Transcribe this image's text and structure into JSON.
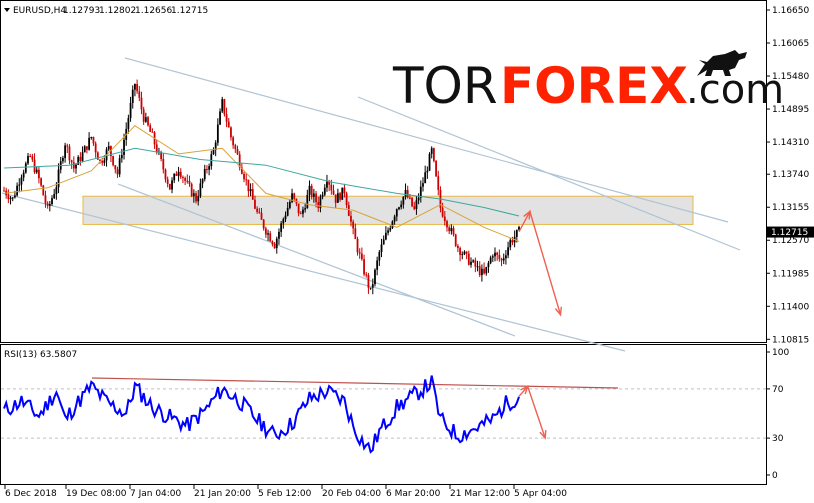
{
  "chart_header": {
    "symbol": "EURUSD,H4",
    "open": "1.12793",
    "high": "1.12802",
    "low": "1.12656",
    "close": "1.12715"
  },
  "logo": {
    "tor": "TOR",
    "forex": "FOREX",
    "com": ".com"
  },
  "current_price_label": "1.12715",
  "rsi_header": "RSI(13) 63.5807",
  "colors": {
    "bull_candle": "#000000",
    "bear_candle": "#cc0000",
    "ma_orange": "#d9a23a",
    "ma_teal": "#3ea7a0",
    "channel": "#b0c4d4",
    "resistance_zone_fill": "#d8d8d8",
    "resistance_zone_border": "#e8b84a",
    "rsi_line": "#0000ff",
    "arrow": "#f06050",
    "rsi_trendline": "#c0504d"
  },
  "chart_data": [
    {
      "type": "candlestick",
      "title": "",
      "y_ticks": [
        "1.16650",
        "1.16065",
        "1.15480",
        "1.14895",
        "1.14310",
        "1.13740",
        "1.13155",
        "1.12570",
        "1.11985",
        "1.11400",
        "1.10815"
      ],
      "ylim": [
        1.1082,
        1.1665
      ],
      "x_ticks": [
        "6 Dec 2018",
        "19 Dec 08:00",
        "7 Jan 04:00",
        "21 Jan 20:00",
        "5 Feb 12:00",
        "20 Feb 04:00",
        "6 Mar 20:00",
        "21 Mar 12:00",
        "5 Apr 04:00"
      ],
      "price_path": [
        [
          0,
          1.1345
        ],
        [
          4,
          1.133
        ],
        [
          8,
          1.1375
        ],
        [
          12,
          1.1405
        ],
        [
          16,
          1.1365
        ],
        [
          20,
          1.131
        ],
        [
          24,
          1.1355
        ],
        [
          28,
          1.143
        ],
        [
          32,
          1.1385
        ],
        [
          36,
          1.141
        ],
        [
          40,
          1.144
        ],
        [
          44,
          1.1395
        ],
        [
          48,
          1.142
        ],
        [
          52,
          1.1375
        ],
        [
          56,
          1.1455
        ],
        [
          60,
          1.1535
        ],
        [
          64,
          1.1475
        ],
        [
          68,
          1.144
        ],
        [
          72,
          1.1395
        ],
        [
          76,
          1.135
        ],
        [
          80,
          1.1385
        ],
        [
          84,
          1.1355
        ],
        [
          88,
          1.133
        ],
        [
          92,
          1.1375
        ],
        [
          96,
          1.1415
        ],
        [
          100,
          1.15
        ],
        [
          104,
          1.144
        ],
        [
          108,
          1.1395
        ],
        [
          112,
          1.135
        ],
        [
          116,
          1.1305
        ],
        [
          120,
          1.1275
        ],
        [
          124,
          1.125
        ],
        [
          128,
          1.1295
        ],
        [
          132,
          1.1335
        ],
        [
          136,
          1.13
        ],
        [
          140,
          1.1345
        ],
        [
          144,
          1.132
        ],
        [
          148,
          1.137
        ],
        [
          152,
          1.133
        ],
        [
          156,
          1.1345
        ],
        [
          160,
          1.127
        ],
        [
          164,
          1.1215
        ],
        [
          168,
          1.1165
        ],
        [
          172,
          1.1235
        ],
        [
          176,
          1.1275
        ],
        [
          180,
          1.1315
        ],
        [
          184,
          1.134
        ],
        [
          188,
          1.131
        ],
        [
          192,
          1.136
        ],
        [
          196,
          1.1415
        ],
        [
          200,
          1.1315
        ],
        [
          204,
          1.128
        ],
        [
          208,
          1.1245
        ],
        [
          212,
          1.1225
        ],
        [
          216,
          1.121
        ],
        [
          220,
          1.1195
        ],
        [
          224,
          1.1235
        ],
        [
          228,
          1.122
        ],
        [
          232,
          1.1255
        ],
        [
          236,
          1.1272
        ]
      ],
      "ma_orange_path": [
        [
          0,
          1.134
        ],
        [
          20,
          1.135
        ],
        [
          40,
          1.138
        ],
        [
          60,
          1.146
        ],
        [
          80,
          1.141
        ],
        [
          100,
          1.142
        ],
        [
          120,
          1.134
        ],
        [
          140,
          1.132
        ],
        [
          160,
          1.131
        ],
        [
          180,
          1.128
        ],
        [
          200,
          1.132
        ],
        [
          220,
          1.128
        ],
        [
          236,
          1.1255
        ]
      ],
      "ma_teal_path": [
        [
          0,
          1.1385
        ],
        [
          30,
          1.139
        ],
        [
          60,
          1.142
        ],
        [
          90,
          1.14
        ],
        [
          120,
          1.139
        ],
        [
          150,
          1.136
        ],
        [
          180,
          1.134
        ],
        [
          200,
          1.133
        ],
        [
          220,
          1.1315
        ],
        [
          236,
          1.13
        ]
      ],
      "resistance_zone": [
        1.1285,
        1.1335
      ],
      "current_price": 1.12715,
      "forecast_arrow": {
        "path": [
          [
            236,
            1.1272
          ],
          [
            241,
            1.1308
          ],
          [
            255,
            1.1125
          ]
        ]
      }
    },
    {
      "type": "line",
      "title": "",
      "y_ticks": [
        "100",
        "70",
        "30",
        "0"
      ],
      "ylim": [
        0,
        100
      ],
      "reference_levels": [
        70,
        30
      ],
      "rsi_path": [
        [
          0,
          52
        ],
        [
          8,
          60
        ],
        [
          16,
          48
        ],
        [
          24,
          68
        ],
        [
          28,
          45
        ],
        [
          32,
          55
        ],
        [
          40,
          72
        ],
        [
          48,
          58
        ],
        [
          56,
          50
        ],
        [
          60,
          72
        ],
        [
          68,
          55
        ],
        [
          76,
          47
        ],
        [
          84,
          40
        ],
        [
          92,
          52
        ],
        [
          100,
          70
        ],
        [
          108,
          60
        ],
        [
          116,
          45
        ],
        [
          124,
          32
        ],
        [
          132,
          42
        ],
        [
          140,
          62
        ],
        [
          148,
          68
        ],
        [
          156,
          60
        ],
        [
          160,
          40
        ],
        [
          164,
          28
        ],
        [
          168,
          20
        ],
        [
          172,
          35
        ],
        [
          180,
          55
        ],
        [
          188,
          65
        ],
        [
          196,
          75
        ],
        [
          200,
          45
        ],
        [
          208,
          32
        ],
        [
          216,
          38
        ],
        [
          224,
          45
        ],
        [
          230,
          58
        ],
        [
          236,
          63.58
        ]
      ],
      "forecast_arrow": {
        "path": [
          [
            236,
            64
          ],
          [
            240,
            72
          ],
          [
            248,
            30
          ]
        ]
      }
    }
  ]
}
